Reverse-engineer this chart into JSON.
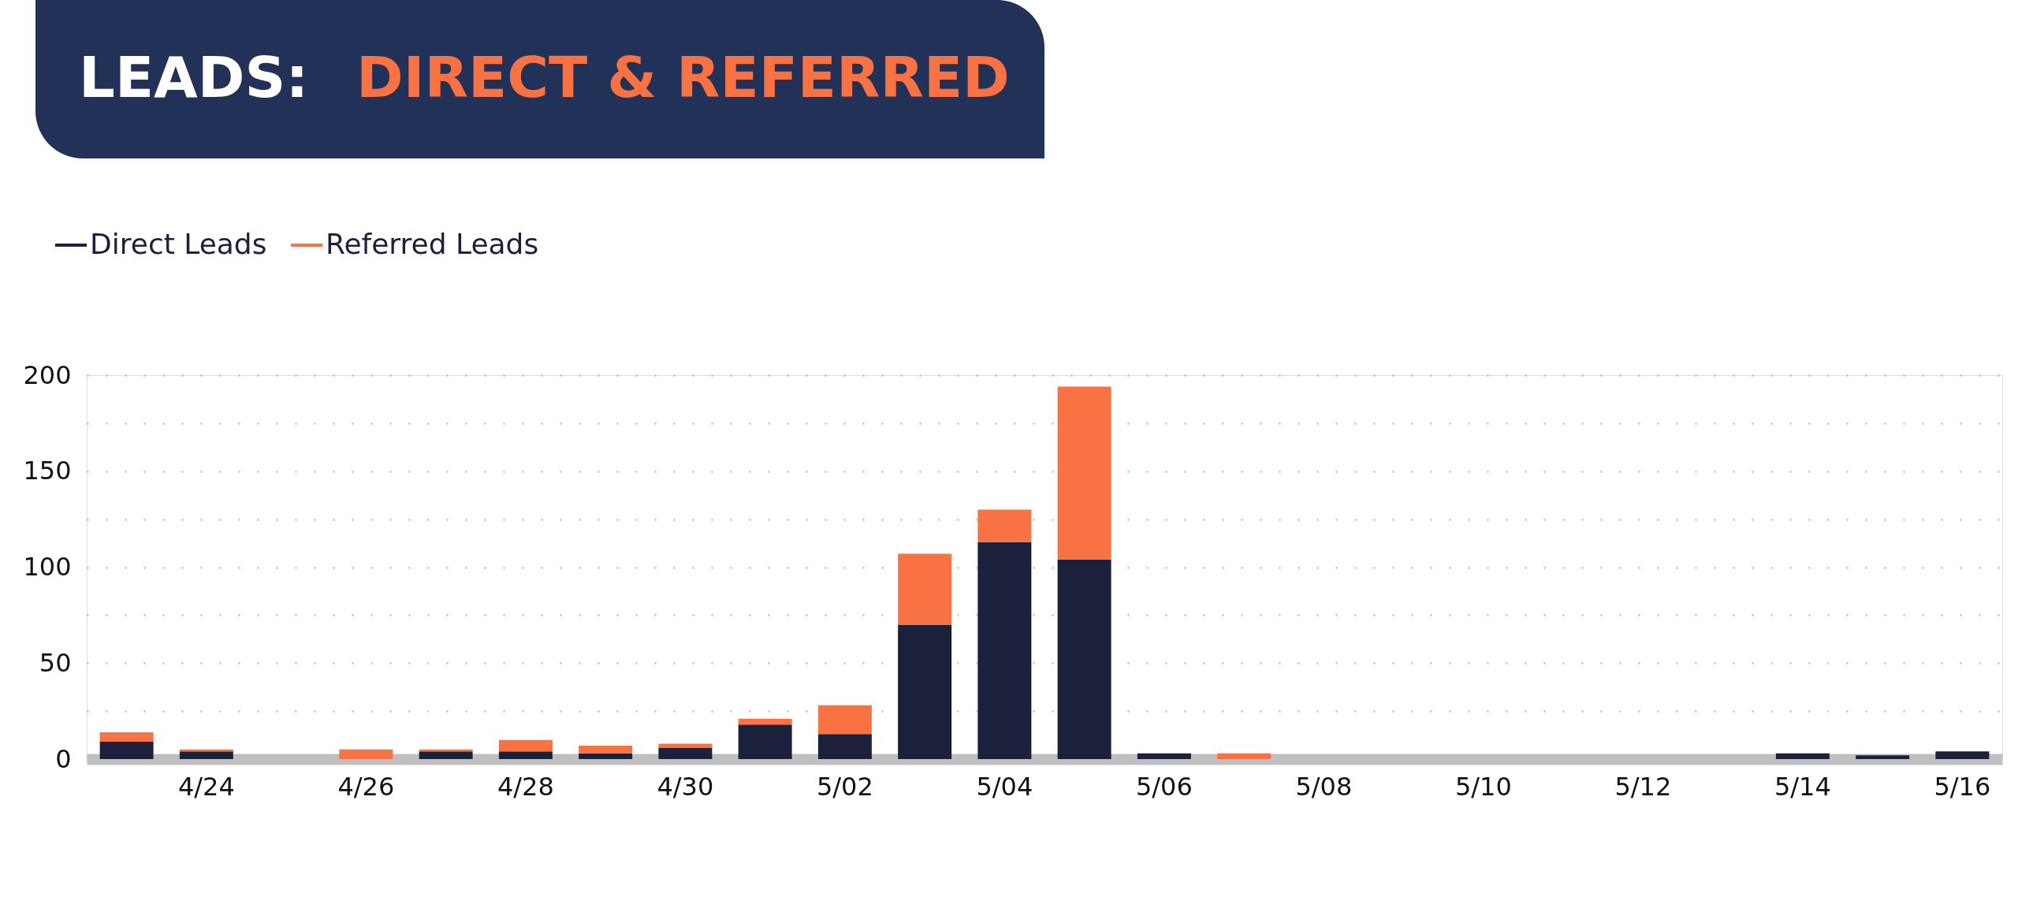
{
  "chart_data": {
    "type": "bar",
    "title": "LEADS: DIRECT & REFERRED",
    "stacked": true,
    "categories": [
      null,
      "4/24",
      null,
      "4/26",
      null,
      "4/28",
      null,
      "4/30",
      null,
      "5/02",
      null,
      "5/04",
      null,
      "5/06",
      null,
      "5/08",
      null,
      "5/10",
      null,
      "5/12",
      null,
      "5/14",
      null,
      "5/16"
    ],
    "series": [
      {
        "name": "Direct Leads",
        "color": "#1b213b",
        "values": [
          9,
          4,
          0,
          0,
          4,
          4,
          3,
          6,
          18,
          13,
          70,
          113,
          104,
          3,
          0,
          0,
          0,
          0,
          0,
          0,
          0,
          3,
          2,
          4
        ]
      },
      {
        "name": "Referred Leads",
        "color": "#f87243",
        "values": [
          5,
          1,
          0,
          5,
          1,
          6,
          4,
          2,
          3,
          15,
          37,
          17,
          90,
          0,
          3,
          0,
          0,
          0,
          0,
          0,
          0,
          0,
          0,
          0
        ]
      }
    ],
    "ylim": [
      0,
      200
    ],
    "yticks": [
      0,
      {
        "value": 25,
        "label": null
      },
      50,
      {
        "value": 75,
        "label": null
      },
      100,
      {
        "value": 125,
        "label": null
      },
      150,
      {
        "value": 175,
        "label": null
      },
      200
    ],
    "grid": "y",
    "legend": "top left"
  }
}
